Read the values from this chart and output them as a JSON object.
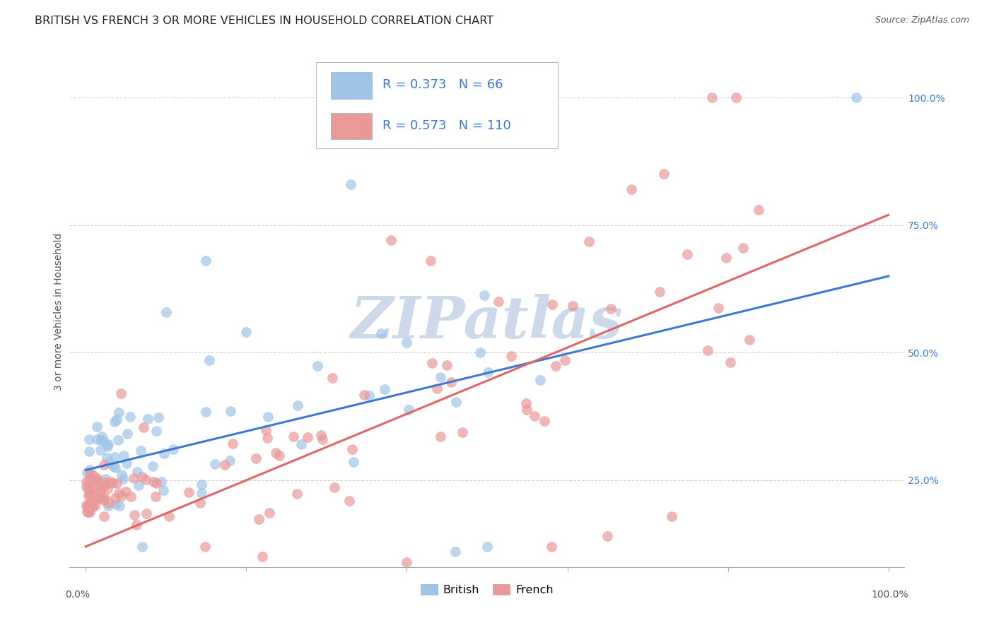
{
  "title": "BRITISH VS FRENCH 3 OR MORE VEHICLES IN HOUSEHOLD CORRELATION CHART",
  "source": "Source: ZipAtlas.com",
  "ylabel": "3 or more Vehicles in Household",
  "ytick_values": [
    0.25,
    0.5,
    0.75,
    1.0
  ],
  "xlim": [
    -0.02,
    1.02
  ],
  "ylim": [
    0.08,
    1.08
  ],
  "british_R": 0.373,
  "british_N": 66,
  "french_R": 0.573,
  "french_N": 110,
  "british_color": "#9fc5e8",
  "french_color": "#ea9999",
  "british_line_color": "#3c78d8",
  "french_line_color": "#e06666",
  "legend_color": "#3c78d8",
  "legend_N_color": "#38761d",
  "watermark_color": "#ccd9ea",
  "watermark_text": "ZIPatlas",
  "background_color": "#ffffff",
  "grid_color": "#cccccc",
  "title_fontsize": 11.5,
  "axis_label_fontsize": 10,
  "tick_fontsize": 10,
  "legend_fontsize": 13,
  "source_fontsize": 9,
  "british_line_intercept": 0.27,
  "british_line_slope": 0.38,
  "french_line_intercept": 0.12,
  "french_line_slope": 0.65
}
